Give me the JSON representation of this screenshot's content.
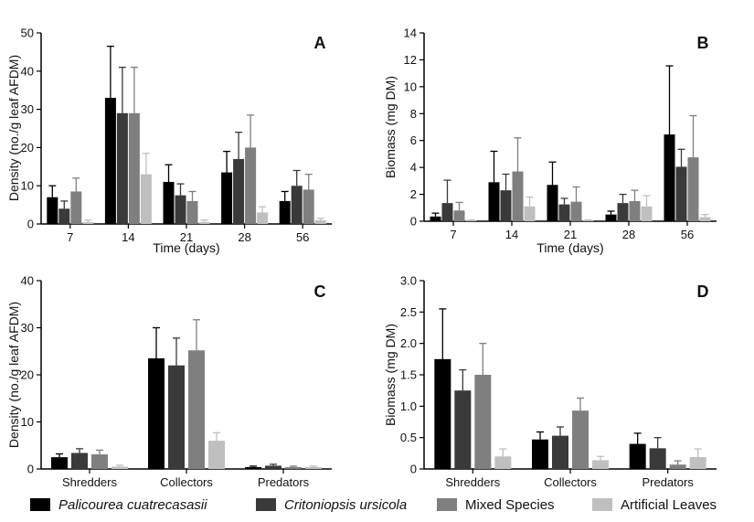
{
  "chart_data": [
    {
      "panel": "A",
      "type": "bar",
      "xlabel": "Time (days)",
      "ylabel": "Density (no./g leaf AFDM)",
      "categories": [
        "7",
        "14",
        "21",
        "28",
        "56"
      ],
      "ylim": [
        0,
        50
      ],
      "yticks": [
        0,
        10,
        20,
        30,
        40,
        50
      ],
      "series": [
        {
          "name": "Palicourea cuatrecasasii",
          "values": [
            7,
            33,
            11,
            13.5,
            6
          ],
          "errors": [
            3,
            13.5,
            4.5,
            5.5,
            2.5
          ]
        },
        {
          "name": "Critoniopsis ursicola",
          "values": [
            4,
            29,
            7.5,
            17,
            10
          ],
          "errors": [
            2,
            12,
            3,
            7,
            4
          ]
        },
        {
          "name": "Mixed Species",
          "values": [
            8.5,
            29,
            6,
            20,
            9
          ],
          "errors": [
            3.5,
            12,
            2.5,
            8.5,
            4
          ]
        },
        {
          "name": "Artificial Leaves",
          "values": [
            0.5,
            13,
            0.5,
            3,
            1
          ],
          "errors": [
            0.5,
            5.5,
            0.5,
            1.5,
            0.5
          ]
        }
      ]
    },
    {
      "panel": "B",
      "type": "bar",
      "xlabel": "Time (days)",
      "ylabel": "Biomass (mg DM)",
      "categories": [
        "7",
        "14",
        "21",
        "28",
        "56"
      ],
      "ylim": [
        0,
        14
      ],
      "yticks": [
        0,
        2,
        4,
        6,
        8,
        10,
        12,
        14
      ],
      "series": [
        {
          "name": "Palicourea cuatrecasasii",
          "values": [
            0.35,
            2.9,
            2.7,
            0.5,
            6.45
          ],
          "errors": [
            0.25,
            2.3,
            1.7,
            0.25,
            5.1
          ]
        },
        {
          "name": "Critoniopsis ursicola",
          "values": [
            1.35,
            2.3,
            1.25,
            1.35,
            4.05
          ],
          "errors": [
            1.7,
            1.2,
            0.45,
            0.65,
            1.3
          ]
        },
        {
          "name": "Mixed Species",
          "values": [
            0.8,
            3.7,
            1.45,
            1.5,
            4.75
          ],
          "errors": [
            0.6,
            2.5,
            1.1,
            0.8,
            3.1
          ]
        },
        {
          "name": "Artificial Leaves",
          "values": [
            0.05,
            1.1,
            0.05,
            1.1,
            0.3
          ],
          "errors": [
            0.05,
            0.7,
            0.05,
            0.8,
            0.2
          ]
        }
      ]
    },
    {
      "panel": "C",
      "type": "bar",
      "xlabel": "",
      "ylabel": "Density (no./g leaf AFDM)",
      "categories": [
        "Shredders",
        "Collectors",
        "Predators"
      ],
      "ylim": [
        0,
        40
      ],
      "yticks": [
        0,
        10,
        20,
        30,
        40
      ],
      "series": [
        {
          "name": "Palicourea cuatrecasasii",
          "values": [
            2.5,
            23.5,
            0.4
          ],
          "errors": [
            0.7,
            6.5,
            0.2
          ]
        },
        {
          "name": "Critoniopsis ursicola",
          "values": [
            3.4,
            22,
            0.7
          ],
          "errors": [
            0.9,
            5.8,
            0.3
          ]
        },
        {
          "name": "Mixed Species",
          "values": [
            3.1,
            25.2,
            0.4
          ],
          "errors": [
            0.9,
            6.5,
            0.2
          ]
        },
        {
          "name": "Artificial Leaves",
          "values": [
            0.5,
            6,
            0.4
          ],
          "errors": [
            0.3,
            1.7,
            0.2
          ]
        }
      ]
    },
    {
      "panel": "D",
      "type": "bar",
      "xlabel": "",
      "ylabel": "Biomass (mg DM)",
      "categories": [
        "Shredders",
        "Collectors",
        "Predators"
      ],
      "ylim": [
        0,
        3.0
      ],
      "yticks": [
        "0",
        "0.5",
        "1.0",
        "1.5",
        "2.0",
        "2.5",
        "3.0"
      ],
      "series": [
        {
          "name": "Palicourea cuatrecasasii",
          "values": [
            1.75,
            0.47,
            0.4
          ],
          "errors": [
            0.8,
            0.12,
            0.17
          ]
        },
        {
          "name": "Critoniopsis ursicola",
          "values": [
            1.25,
            0.53,
            0.33
          ],
          "errors": [
            0.33,
            0.14,
            0.17
          ]
        },
        {
          "name": "Mixed Species",
          "values": [
            1.5,
            0.93,
            0.07
          ],
          "errors": [
            0.5,
            0.2,
            0.06
          ]
        },
        {
          "name": "Artificial Leaves",
          "values": [
            0.2,
            0.14,
            0.19
          ],
          "errors": [
            0.12,
            0.06,
            0.13
          ]
        }
      ]
    }
  ],
  "legend": {
    "items": [
      {
        "label": "Palicourea cuatrecasasii",
        "italic": true,
        "color": "#000000"
      },
      {
        "label": "Critoniopsis ursicola",
        "italic": true,
        "color": "#3a3a3a"
      },
      {
        "label": "Mixed Species",
        "italic": false,
        "color": "#7f7f7f"
      },
      {
        "label": "Artificial Leaves",
        "italic": false,
        "color": "#bfbfbf"
      }
    ]
  },
  "colors": {
    "series": [
      "#000000",
      "#3a3a3a",
      "#7f7f7f",
      "#bfbfbf"
    ],
    "axis": "#000000"
  }
}
